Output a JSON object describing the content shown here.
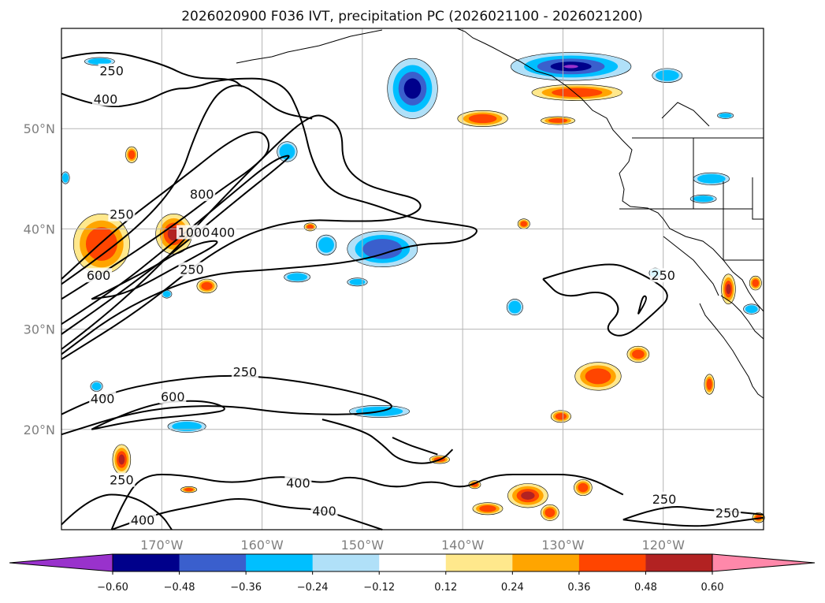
{
  "chart_data": {
    "type": "heatmap",
    "title": "2026020900 F036 IVT, precipitation PC (2026021100 - 2026021200)",
    "map": {
      "lon_range": [
        -180,
        -110
      ],
      "lat_range": [
        10,
        60
      ],
      "lat_ticks": [
        20,
        30,
        40,
        50
      ],
      "lat_tick_labels": [
        "20°N",
        "30°N",
        "40°N",
        "50°N"
      ],
      "lon_ticks": [
        -170,
        -160,
        -150,
        -140,
        -130,
        -120
      ],
      "lon_tick_labels": [
        "170°W",
        "160°W",
        "150°W",
        "140°W",
        "130°W",
        "120°W"
      ],
      "grid": true
    },
    "contours": {
      "variable": "IVT",
      "levels": [
        250,
        400,
        600,
        800,
        1000
      ],
      "labels": [
        {
          "text": "250",
          "lon": -175.0,
          "lat": 55.7
        },
        {
          "text": "400",
          "lon": -175.6,
          "lat": 52.9
        },
        {
          "text": "250",
          "lon": -174.0,
          "lat": 41.4
        },
        {
          "text": "800",
          "lon": -166.0,
          "lat": 43.4
        },
        {
          "text": "1000",
          "lon": -166.8,
          "lat": 39.6
        },
        {
          "text": "400",
          "lon": -163.9,
          "lat": 39.6
        },
        {
          "text": "600",
          "lon": -176.3,
          "lat": 35.3
        },
        {
          "text": "250",
          "lon": -167.0,
          "lat": 35.9
        },
        {
          "text": "250",
          "lon": -120.0,
          "lat": 35.3
        },
        {
          "text": "250",
          "lon": -161.7,
          "lat": 25.7
        },
        {
          "text": "600",
          "lon": -168.9,
          "lat": 23.2
        },
        {
          "text": "400",
          "lon": -175.9,
          "lat": 23.0
        },
        {
          "text": "250",
          "lon": -174.0,
          "lat": 14.9
        },
        {
          "text": "400",
          "lon": -156.4,
          "lat": 14.6
        },
        {
          "text": "400",
          "lon": -153.8,
          "lat": 11.8
        },
        {
          "text": "400",
          "lon": -171.9,
          "lat": 10.9
        },
        {
          "text": "250",
          "lon": -119.9,
          "lat": 13.0
        },
        {
          "text": "250",
          "lon": -113.6,
          "lat": 11.6
        }
      ]
    },
    "colorbar": {
      "variable": "precipitation PC",
      "extend": "both",
      "boundaries": [
        -0.6,
        -0.48,
        -0.36,
        -0.24,
        -0.12,
        0.12,
        0.24,
        0.36,
        0.48,
        0.6
      ],
      "tick_labels": [
        "−0.60",
        "−0.48",
        "−0.36",
        "−0.24",
        "−0.12",
        "0.12",
        "0.24",
        "0.36",
        "0.48",
        "0.60"
      ],
      "colors": [
        "#9932cc",
        "#00008b",
        "#3a5fcd",
        "#00bfff",
        "#b0e0f8",
        "#ffffff",
        "#ffe88c",
        "#ffa500",
        "#ff4500",
        "#b22222",
        "#ff88aa"
      ]
    },
    "precip_regions": [
      {
        "lon": -145.0,
        "lat": 54.0,
        "rlon": 2.5,
        "rlat": 3.0,
        "value": -0.5
      },
      {
        "lon": -129.2,
        "lat": 56.2,
        "rlon": 6.0,
        "rlat": 1.4,
        "value": -0.6
      },
      {
        "lon": -119.6,
        "lat": 55.3,
        "rlon": 1.5,
        "rlat": 0.7,
        "value": -0.3
      },
      {
        "lon": -115.2,
        "lat": 45.0,
        "rlon": 1.8,
        "rlat": 0.6,
        "value": -0.3
      },
      {
        "lon": -116.0,
        "lat": 43.0,
        "rlon": 1.3,
        "rlat": 0.4,
        "value": -0.3
      },
      {
        "lon": -128.6,
        "lat": 53.6,
        "rlon": 4.5,
        "rlat": 0.8,
        "value": 0.4
      },
      {
        "lon": -138.0,
        "lat": 51.0,
        "rlon": 2.5,
        "rlat": 0.8,
        "value": 0.4
      },
      {
        "lon": -130.5,
        "lat": 50.8,
        "rlon": 1.7,
        "rlat": 0.4,
        "value": 0.4
      },
      {
        "lon": -148.0,
        "lat": 38.0,
        "rlon": 3.5,
        "rlat": 1.8,
        "value": -0.4
      },
      {
        "lon": -153.6,
        "lat": 38.4,
        "rlon": 1.0,
        "rlat": 1.0,
        "value": -0.3
      },
      {
        "lon": -156.5,
        "lat": 35.2,
        "rlon": 1.3,
        "rlat": 0.5,
        "value": -0.3
      },
      {
        "lon": -150.5,
        "lat": 34.7,
        "rlon": 1.0,
        "rlat": 0.4,
        "value": -0.3
      },
      {
        "lon": -157.5,
        "lat": 47.7,
        "rlon": 1.0,
        "rlat": 1.0,
        "value": -0.3
      },
      {
        "lon": -134.8,
        "lat": 32.2,
        "rlon": 0.8,
        "rlat": 0.8,
        "value": -0.3
      },
      {
        "lon": -176.0,
        "lat": 38.5,
        "rlon": 2.8,
        "rlat": 3.0,
        "value": 0.4
      },
      {
        "lon": -168.8,
        "lat": 39.5,
        "rlon": 1.8,
        "rlat": 2.0,
        "value": 0.5
      },
      {
        "lon": -165.5,
        "lat": 34.3,
        "rlon": 1.0,
        "rlat": 0.7,
        "value": 0.4
      },
      {
        "lon": -173.0,
        "lat": 47.4,
        "rlon": 0.6,
        "rlat": 0.8,
        "value": 0.4
      },
      {
        "lon": -155.2,
        "lat": 40.2,
        "rlon": 0.6,
        "rlat": 0.4,
        "value": 0.4
      },
      {
        "lon": -133.9,
        "lat": 40.5,
        "rlon": 0.6,
        "rlat": 0.5,
        "value": 0.4
      },
      {
        "lon": -126.5,
        "lat": 25.3,
        "rlon": 2.3,
        "rlat": 1.4,
        "value": 0.4
      },
      {
        "lon": -122.5,
        "lat": 27.5,
        "rlon": 1.1,
        "rlat": 0.8,
        "value": 0.4
      },
      {
        "lon": -113.5,
        "lat": 34.0,
        "rlon": 0.7,
        "rlat": 1.5,
        "value": 0.5
      },
      {
        "lon": -110.8,
        "lat": 34.6,
        "rlon": 0.6,
        "rlat": 0.7,
        "value": 0.4
      },
      {
        "lon": -115.4,
        "lat": 24.5,
        "rlon": 0.5,
        "rlat": 1.0,
        "value": 0.4
      },
      {
        "lon": -130.2,
        "lat": 21.3,
        "rlon": 1.0,
        "rlat": 0.6,
        "value": 0.4
      },
      {
        "lon": -133.5,
        "lat": 13.4,
        "rlon": 2.0,
        "rlat": 1.2,
        "value": 0.5
      },
      {
        "lon": -137.5,
        "lat": 12.1,
        "rlon": 1.5,
        "rlat": 0.6,
        "value": 0.4
      },
      {
        "lon": -131.3,
        "lat": 11.7,
        "rlon": 0.9,
        "rlat": 0.8,
        "value": 0.4
      },
      {
        "lon": -128.0,
        "lat": 14.2,
        "rlon": 0.9,
        "rlat": 0.8,
        "value": 0.4
      },
      {
        "lon": -174.0,
        "lat": 17.0,
        "rlon": 0.9,
        "rlat": 1.5,
        "value": 0.5
      },
      {
        "lon": -148.3,
        "lat": 21.8,
        "rlon": 3.0,
        "rlat": 0.6,
        "value": -0.3
      },
      {
        "lon": -167.5,
        "lat": 20.3,
        "rlon": 1.9,
        "rlat": 0.6,
        "value": -0.3
      },
      {
        "lon": -176.5,
        "lat": 24.3,
        "rlon": 0.6,
        "rlat": 0.5,
        "value": -0.3
      },
      {
        "lon": -142.3,
        "lat": 17.0,
        "rlon": 1.0,
        "rlat": 0.4,
        "value": 0.4
      },
      {
        "lon": -138.8,
        "lat": 14.5,
        "rlon": 0.6,
        "rlat": 0.4,
        "value": 0.4
      },
      {
        "lon": -167.3,
        "lat": 14.0,
        "rlon": 0.8,
        "rlat": 0.3,
        "value": 0.4
      },
      {
        "lon": -110.5,
        "lat": 11.2,
        "rlon": 0.6,
        "rlat": 0.5,
        "value": 0.4
      },
      {
        "lon": -169.5,
        "lat": 33.5,
        "rlon": 0.5,
        "rlat": 0.4,
        "value": -0.3
      },
      {
        "lon": -111.2,
        "lat": 32.0,
        "rlon": 0.8,
        "rlat": 0.5,
        "value": -0.3
      },
      {
        "lon": -120.8,
        "lat": 35.6,
        "rlon": 0.6,
        "rlat": 0.5,
        "value": -0.3
      },
      {
        "lon": -113.8,
        "lat": 51.3,
        "rlon": 0.8,
        "rlat": 0.3,
        "value": -0.3
      },
      {
        "lon": -176.2,
        "lat": 56.7,
        "rlon": 1.5,
        "rlat": 0.4,
        "value": -0.3
      },
      {
        "lon": -179.6,
        "lat": 45.1,
        "rlon": 0.4,
        "rlat": 0.6,
        "value": -0.3
      }
    ],
    "ivt_paths": [
      [
        [
          -180.0,
          28.0
        ],
        [
          -176.0,
          31.0
        ],
        [
          -170.0,
          36.5
        ],
        [
          -164.0,
          43.0
        ],
        [
          -158.0,
          49.0
        ],
        [
          -155.6,
          51.0
        ],
        [
          -154.0,
          51.5
        ],
        [
          -152.0,
          50.0
        ],
        [
          -152.0,
          46.5
        ],
        [
          -150.0,
          44.5
        ],
        [
          -147.0,
          43.6
        ],
        [
          -144.5,
          43.0
        ],
        [
          -144.0,
          42.0
        ],
        [
          -146.0,
          41.0
        ],
        [
          -150.0,
          40.7
        ],
        [
          -157.0,
          41.0
        ],
        [
          -164.0,
          38.5
        ],
        [
          -172.0,
          32.0
        ],
        [
          -180.0,
          27.0
        ]
      ],
      [
        [
          -180.0,
          30.5
        ],
        [
          -175.0,
          33.7
        ],
        [
          -169.0,
          38.5
        ],
        [
          -163.0,
          43.5
        ],
        [
          -159.0,
          46.8
        ],
        [
          -157.0,
          47.5
        ],
        [
          -158.0,
          46.5
        ],
        [
          -163.0,
          42.5
        ],
        [
          -169.0,
          37.5
        ],
        [
          -175.0,
          33.0
        ],
        [
          -180.0,
          29.5
        ]
      ],
      [
        [
          -180.0,
          33.0
        ],
        [
          -176.0,
          35.5
        ],
        [
          -169.0,
          40.2
        ],
        [
          -164.0,
          44.0
        ],
        [
          -161.0,
          46.0
        ],
        [
          -159.0,
          48.0
        ],
        [
          -160.0,
          50.0
        ],
        [
          -163.0,
          49.0
        ],
        [
          -168.0,
          45.0
        ],
        [
          -174.0,
          40.5
        ],
        [
          -180.0,
          35.0
        ]
      ],
      [
        [
          -180.0,
          34.5
        ],
        [
          -175.0,
          38.0
        ],
        [
          -170.5,
          42.0
        ],
        [
          -168.0,
          45.5
        ],
        [
          -167.0,
          48.5
        ],
        [
          -165.5,
          52.0
        ],
        [
          -164.0,
          54.0
        ],
        [
          -162.0,
          54.5
        ],
        [
          -160.0,
          53.0
        ],
        [
          -158.0,
          51.5
        ],
        [
          -155.0,
          51.0
        ]
      ],
      [
        [
          -180.0,
          57.0
        ],
        [
          -176.0,
          58.0
        ],
        [
          -170.0,
          56.5
        ],
        [
          -167.0,
          55.0
        ],
        [
          -163.0,
          55.0
        ],
        [
          -162.0,
          54.2
        ]
      ],
      [
        [
          -180.0,
          53.5
        ],
        [
          -176.0,
          52.0
        ],
        [
          -172.0,
          52.5
        ],
        [
          -169.0,
          54.0
        ],
        [
          -167.0,
          54.0
        ],
        [
          -164.0,
          55.0
        ],
        [
          -158.0,
          55.0
        ],
        [
          -156.0,
          51.0
        ],
        [
          -155.0,
          46.5
        ],
        [
          -153.0,
          43.5
        ],
        [
          -149.0,
          42.5
        ],
        [
          -145.0,
          41.0
        ],
        [
          -141.0,
          40.5
        ],
        [
          -138.0,
          40.0
        ],
        [
          -140.0,
          38.6
        ],
        [
          -145.0,
          38.5
        ],
        [
          -150.0,
          36.8
        ],
        [
          -158.0,
          36.0
        ],
        [
          -166.0,
          35.5
        ],
        [
          -174.0,
          32.0
        ],
        [
          -180.0,
          27.5
        ]
      ],
      [
        [
          -177.0,
          33.0
        ],
        [
          -172.0,
          35.5
        ],
        [
          -167.0,
          38.5
        ],
        [
          -163.5,
          39.0
        ],
        [
          -168.0,
          36.5
        ],
        [
          -173.5,
          33.5
        ],
        [
          -177.0,
          33.0
        ]
      ],
      [
        [
          -180.0,
          21.5
        ],
        [
          -176.0,
          23.5
        ],
        [
          -169.0,
          25.0
        ],
        [
          -162.0,
          25.5
        ],
        [
          -154.0,
          24.5
        ],
        [
          -146.0,
          22.5
        ],
        [
          -149.0,
          21.5
        ],
        [
          -157.0,
          21.5
        ],
        [
          -164.0,
          22.5
        ],
        [
          -172.0,
          22.0
        ],
        [
          -180.0,
          19.5
        ]
      ],
      [
        [
          -177.0,
          20.0
        ],
        [
          -172.0,
          22.5
        ],
        [
          -166.0,
          23.0
        ],
        [
          -163.0,
          22.0
        ],
        [
          -166.0,
          21.5
        ],
        [
          -172.0,
          21.0
        ],
        [
          -177.0,
          20.0
        ]
      ],
      [
        [
          -175.0,
          10.0
        ],
        [
          -174.0,
          12.5
        ],
        [
          -172.0,
          15.5
        ],
        [
          -168.0,
          15.5
        ],
        [
          -163.0,
          14.5
        ],
        [
          -158.0,
          15.5
        ],
        [
          -154.0,
          14.5
        ],
        [
          -151.0,
          15.5
        ],
        [
          -147.0,
          14.0
        ],
        [
          -143.0,
          15.0
        ],
        [
          -140.0,
          14.0
        ],
        [
          -137.0,
          15.5
        ],
        [
          -133.0,
          15.5
        ],
        [
          -128.0,
          15.5
        ],
        [
          -124.0,
          13.5
        ]
      ],
      [
        [
          -175.0,
          10.0
        ],
        [
          -171.0,
          11.5
        ],
        [
          -166.0,
          12.5
        ],
        [
          -162.0,
          13.3
        ],
        [
          -158.0,
          12.2
        ],
        [
          -154.0,
          12.0
        ],
        [
          -151.0,
          11.0
        ],
        [
          -148.0,
          10.0
        ]
      ],
      [
        [
          -180.0,
          10.5
        ],
        [
          -177.0,
          13.5
        ],
        [
          -173.0,
          13.5
        ],
        [
          -170.0,
          11.5
        ],
        [
          -169.0,
          10.0
        ]
      ],
      [
        [
          -132.0,
          35.0
        ],
        [
          -126.0,
          37.0
        ],
        [
          -122.0,
          35.5
        ],
        [
          -119.0,
          33.5
        ],
        [
          -121.0,
          31.5
        ],
        [
          -124.0,
          29.0
        ],
        [
          -126.0,
          30.0
        ],
        [
          -124.0,
          32.0
        ],
        [
          -126.0,
          34.0
        ],
        [
          -130.0,
          33.0
        ],
        [
          -132.0,
          35.0
        ]
      ],
      [
        [
          -122.5,
          31.5
        ],
        [
          -121.5,
          33.0
        ],
        [
          -122.0,
          33.5
        ],
        [
          -122.5,
          31.5
        ]
      ],
      [
        [
          -124.0,
          11.0
        ],
        [
          -120.0,
          12.5
        ],
        [
          -116.0,
          12.0
        ],
        [
          -113.0,
          11.8
        ],
        [
          -110.0,
          11.5
        ]
      ],
      [
        [
          -124.0,
          11.0
        ],
        [
          -120.0,
          10.5
        ],
        [
          -116.0,
          10.3
        ],
        [
          -113.0,
          10.8
        ],
        [
          -110.0,
          11.2
        ]
      ],
      [
        [
          -154.0,
          21.0
        ],
        [
          -150.0,
          20.0
        ],
        [
          -148.0,
          18.5
        ],
        [
          -146.5,
          17.0
        ],
        [
          -144.0,
          16.5
        ],
        [
          -142.0,
          17.0
        ],
        [
          -141.0,
          18.0
        ]
      ],
      [
        [
          -147.0,
          19.2
        ],
        [
          -145.5,
          18.5
        ],
        [
          -144.0,
          18.0
        ],
        [
          -142.5,
          17.5
        ]
      ]
    ]
  }
}
